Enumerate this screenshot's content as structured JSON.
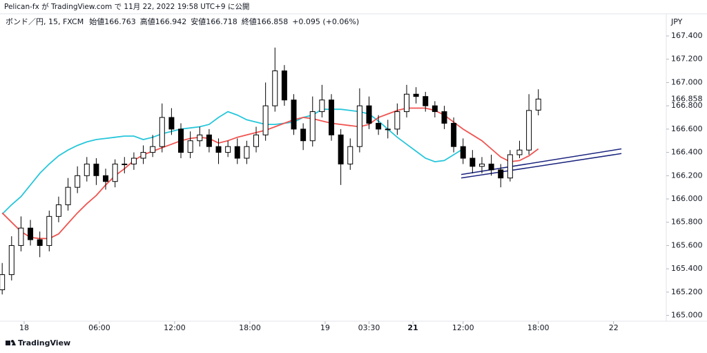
{
  "header": "Pelican-fx が TradingView.com で 11月 22, 2022 19:58 UTC+9 に公開",
  "footer": "TradingView",
  "chart_data": {
    "type": "candlestick",
    "symbol": "ボンド／円, 15, FXCM",
    "legend_items": [
      "始値166.763",
      "高値166.942",
      "安値166.718",
      "終値166.858",
      "+0.095 (+0.06%)"
    ],
    "currency": "JPY",
    "last_price": 166.858,
    "up_color": "#ffffff",
    "down_color": "#000000",
    "x": [
      -7,
      -4,
      -1,
      2,
      5,
      8,
      11,
      14,
      17,
      20,
      23,
      26,
      29,
      32,
      35,
      38,
      41,
      44,
      47,
      50,
      53,
      56,
      59,
      62,
      65,
      68,
      71,
      74,
      77,
      80,
      83,
      86,
      89,
      92,
      95,
      98,
      101,
      104,
      107,
      110,
      113,
      116,
      119,
      122,
      125,
      128,
      131,
      134,
      137,
      140,
      143,
      146,
      149,
      152,
      155,
      158,
      161,
      164
    ],
    "open": [
      165.22,
      165.35,
      165.6,
      165.75,
      165.65,
      165.6,
      165.85,
      165.95,
      166.1,
      166.2,
      166.3,
      166.2,
      166.15,
      166.3,
      166.3,
      166.35,
      166.4,
      166.45,
      166.7,
      166.6,
      166.4,
      166.5,
      166.55,
      166.45,
      166.4,
      166.45,
      166.35,
      166.45,
      166.55,
      166.8,
      167.1,
      166.85,
      166.6,
      166.5,
      166.75,
      166.85,
      166.55,
      166.3,
      166.45,
      166.8,
      166.65,
      166.6,
      166.6,
      166.75,
      166.9,
      166.88,
      166.8,
      166.75,
      166.65,
      166.45,
      166.35,
      166.28,
      166.3,
      166.25,
      166.18,
      166.38,
      166.42,
      166.763
    ],
    "high": [
      165.45,
      165.68,
      165.85,
      165.82,
      165.72,
      165.9,
      166.02,
      166.18,
      166.28,
      166.36,
      166.35,
      166.26,
      166.34,
      166.36,
      166.4,
      166.46,
      166.55,
      166.82,
      166.78,
      166.65,
      166.58,
      166.62,
      166.6,
      166.52,
      166.5,
      166.52,
      166.5,
      166.62,
      167.0,
      167.3,
      167.15,
      166.9,
      166.65,
      166.88,
      166.98,
      166.9,
      166.6,
      166.52,
      166.95,
      166.88,
      166.72,
      166.68,
      166.82,
      166.98,
      166.96,
      166.92,
      166.84,
      166.8,
      166.7,
      166.52,
      166.42,
      166.36,
      166.38,
      166.3,
      166.42,
      166.5,
      166.9,
      166.942
    ],
    "low": [
      165.18,
      165.3,
      165.55,
      165.6,
      165.5,
      165.55,
      165.8,
      165.9,
      166.05,
      166.15,
      166.12,
      166.08,
      166.1,
      166.22,
      166.25,
      166.3,
      166.36,
      166.4,
      166.55,
      166.35,
      166.35,
      166.45,
      166.4,
      166.3,
      166.36,
      166.3,
      166.3,
      166.4,
      166.5,
      166.75,
      166.8,
      166.55,
      166.42,
      166.45,
      166.7,
      166.5,
      166.12,
      166.25,
      166.4,
      166.6,
      166.55,
      166.52,
      166.55,
      166.7,
      166.82,
      166.75,
      166.7,
      166.6,
      166.4,
      166.3,
      166.22,
      166.22,
      166.2,
      166.1,
      166.15,
      166.35,
      166.38,
      166.718
    ],
    "close": [
      165.35,
      165.6,
      165.75,
      165.65,
      165.6,
      165.85,
      165.95,
      166.1,
      166.2,
      166.3,
      166.2,
      166.15,
      166.3,
      166.3,
      166.35,
      166.4,
      166.45,
      166.7,
      166.6,
      166.4,
      166.5,
      166.55,
      166.45,
      166.4,
      166.45,
      166.35,
      166.45,
      166.55,
      166.8,
      167.1,
      166.85,
      166.6,
      166.5,
      166.75,
      166.85,
      166.55,
      166.3,
      166.45,
      166.8,
      166.65,
      166.6,
      166.6,
      166.75,
      166.9,
      166.88,
      166.8,
      166.75,
      166.65,
      166.45,
      166.35,
      166.28,
      166.3,
      166.25,
      166.18,
      166.38,
      166.42,
      166.76,
      166.858
    ],
    "series": [
      {
        "color": "#26c6da",
        "values": [
          165.87,
          165.95,
          166.02,
          166.12,
          166.22,
          166.3,
          166.37,
          166.42,
          166.46,
          166.49,
          166.51,
          166.52,
          166.53,
          166.54,
          166.54,
          166.51,
          166.53,
          166.56,
          166.58,
          166.6,
          166.61,
          166.62,
          166.64,
          166.7,
          166.75,
          166.72,
          166.68,
          166.66,
          166.64,
          166.64,
          166.65,
          166.66,
          166.7,
          166.72,
          166.77,
          166.77,
          166.77,
          166.76,
          166.75,
          166.73,
          166.67,
          166.6,
          166.53,
          166.47,
          166.41,
          166.35,
          166.32,
          166.33,
          166.38,
          166.43,
          null,
          null,
          null,
          null,
          null,
          null,
          null,
          null
        ]
      },
      {
        "color": "#ef5350",
        "values": [
          165.88,
          165.8,
          165.72,
          165.67,
          165.66,
          165.66,
          165.7,
          165.79,
          165.88,
          165.96,
          166.03,
          166.12,
          166.2,
          166.26,
          166.33,
          166.38,
          166.41,
          166.44,
          166.47,
          166.5,
          166.52,
          166.53,
          166.52,
          166.48,
          166.5,
          166.53,
          166.55,
          166.57,
          166.59,
          166.62,
          166.65,
          166.68,
          166.7,
          166.69,
          166.67,
          166.65,
          166.64,
          166.63,
          166.62,
          166.64,
          166.7,
          166.73,
          166.76,
          166.78,
          166.78,
          166.78,
          166.76,
          166.72,
          166.66,
          166.6,
          166.55,
          166.5,
          166.43,
          166.36,
          166.32,
          166.33,
          166.37,
          166.43
        ]
      }
    ],
    "trendlines": [
      {
        "color": "#1a237e",
        "x": [
          139.4,
          190.5
        ],
        "y": [
          166.21,
          166.43
        ]
      },
      {
        "color": "#1a237e",
        "x": [
          139.4,
          190.5
        ],
        "y": [
          166.18,
          166.39
        ]
      }
    ],
    "xlim": [
      -7.7,
      204.8
    ],
    "ylim": [
      164.95,
      167.59
    ],
    "xticks": [
      {
        "value": 0,
        "label": "18"
      },
      {
        "value": 24,
        "label": "06:00"
      },
      {
        "value": 48,
        "label": "12:00"
      },
      {
        "value": 72,
        "label": "18:00"
      },
      {
        "value": 96,
        "label": "19"
      },
      {
        "value": 110,
        "label": "03:30"
      },
      {
        "value": 124,
        "label": "21"
      },
      {
        "value": 140,
        "label": "12:00"
      },
      {
        "value": 164,
        "label": "18:00"
      },
      {
        "value": 188,
        "label": "22"
      }
    ],
    "yticks": [
      {
        "value": 165,
        "label": "165.000"
      },
      {
        "value": 165.2,
        "label": "165.200"
      },
      {
        "value": 165.4,
        "label": "165.400"
      },
      {
        "value": 165.6,
        "label": "165.600"
      },
      {
        "value": 165.8,
        "label": "165.800"
      },
      {
        "value": 166,
        "label": "166.000"
      },
      {
        "value": 166.2,
        "label": "166.200"
      },
      {
        "value": 166.4,
        "label": "166.400"
      },
      {
        "value": 166.6,
        "label": "166.600"
      },
      {
        "value": 166.8,
        "label": "166.800"
      },
      {
        "value": 167,
        "label": "167.000"
      },
      {
        "value": 167.2,
        "label": "167.200"
      },
      {
        "value": 167.4,
        "label": "167.400"
      }
    ],
    "grid": false
  }
}
